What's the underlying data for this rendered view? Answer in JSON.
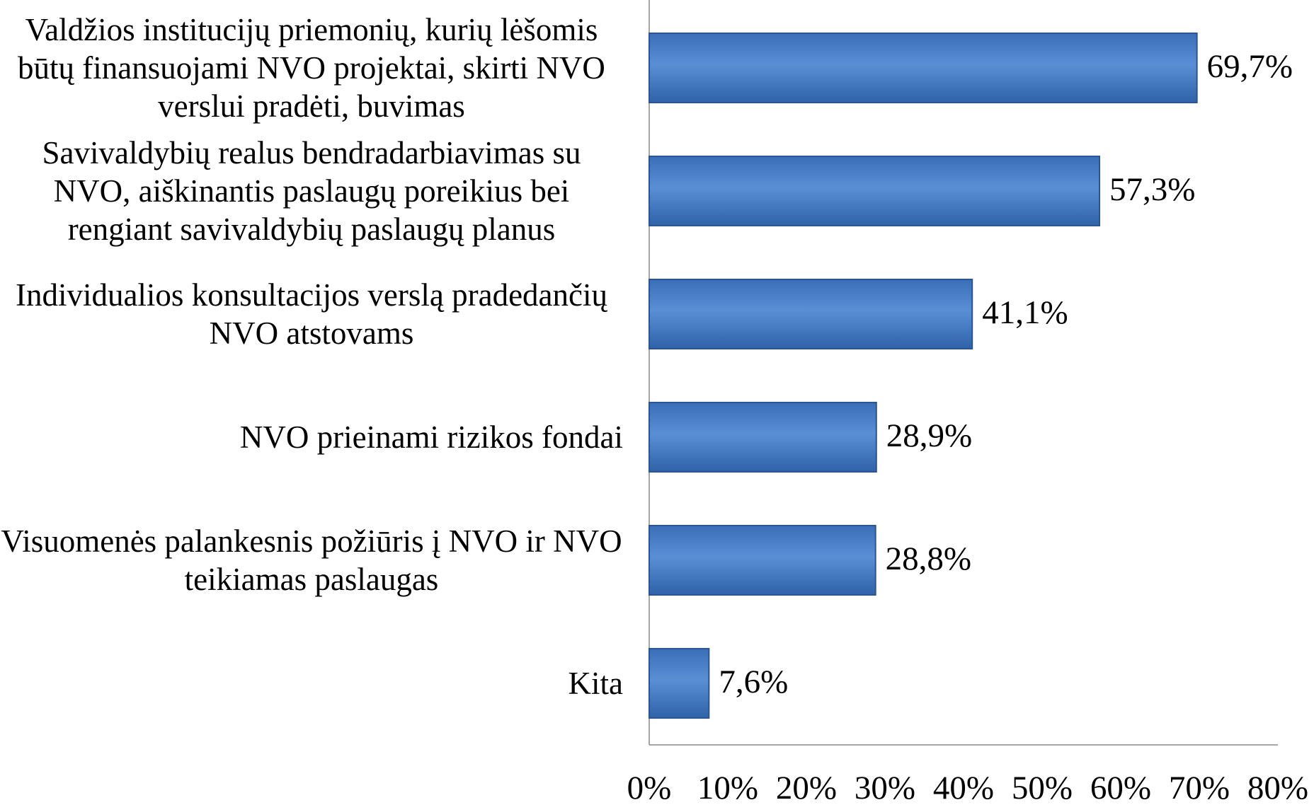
{
  "chart_data": {
    "type": "bar",
    "orientation": "horizontal",
    "categories": [
      "Valdžios institucijų priemonių, kurių lėšomis būtų finansuojami NVO projektai, skirti NVO verslui pradėti, buvimas",
      "Savivaldybių realus bendradarbiavimas su NVO, aiškinantis paslaugų poreikius bei rengiant savivaldybių paslaugų planus",
      "Individualios konsultacijos verslą pradedančių NVO atstovams",
      "NVO prieinami rizikos fondai",
      "Visuomenės palankesnis požiūris į NVO ir NVO teikiamas paslaugas",
      "Kita"
    ],
    "values": [
      69.7,
      57.3,
      41.1,
      28.9,
      28.8,
      7.6
    ],
    "value_labels": [
      "69,7%",
      "57,3%",
      "41,1%",
      "28,9%",
      "28,8%",
      "7,6%"
    ],
    "color": "#4a7ebb",
    "xlim": [
      0,
      80
    ],
    "xticks": [
      {
        "value": 0,
        "label": "0%"
      },
      {
        "value": 10,
        "label": "10%"
      },
      {
        "value": 20,
        "label": "20%"
      },
      {
        "value": 30,
        "label": "30%"
      },
      {
        "value": 40,
        "label": "40%"
      },
      {
        "value": 50,
        "label": "50%"
      },
      {
        "value": 60,
        "label": "60%"
      },
      {
        "value": 70,
        "label": "70%"
      },
      {
        "value": 80,
        "label": "80%"
      }
    ],
    "grid": false
  }
}
